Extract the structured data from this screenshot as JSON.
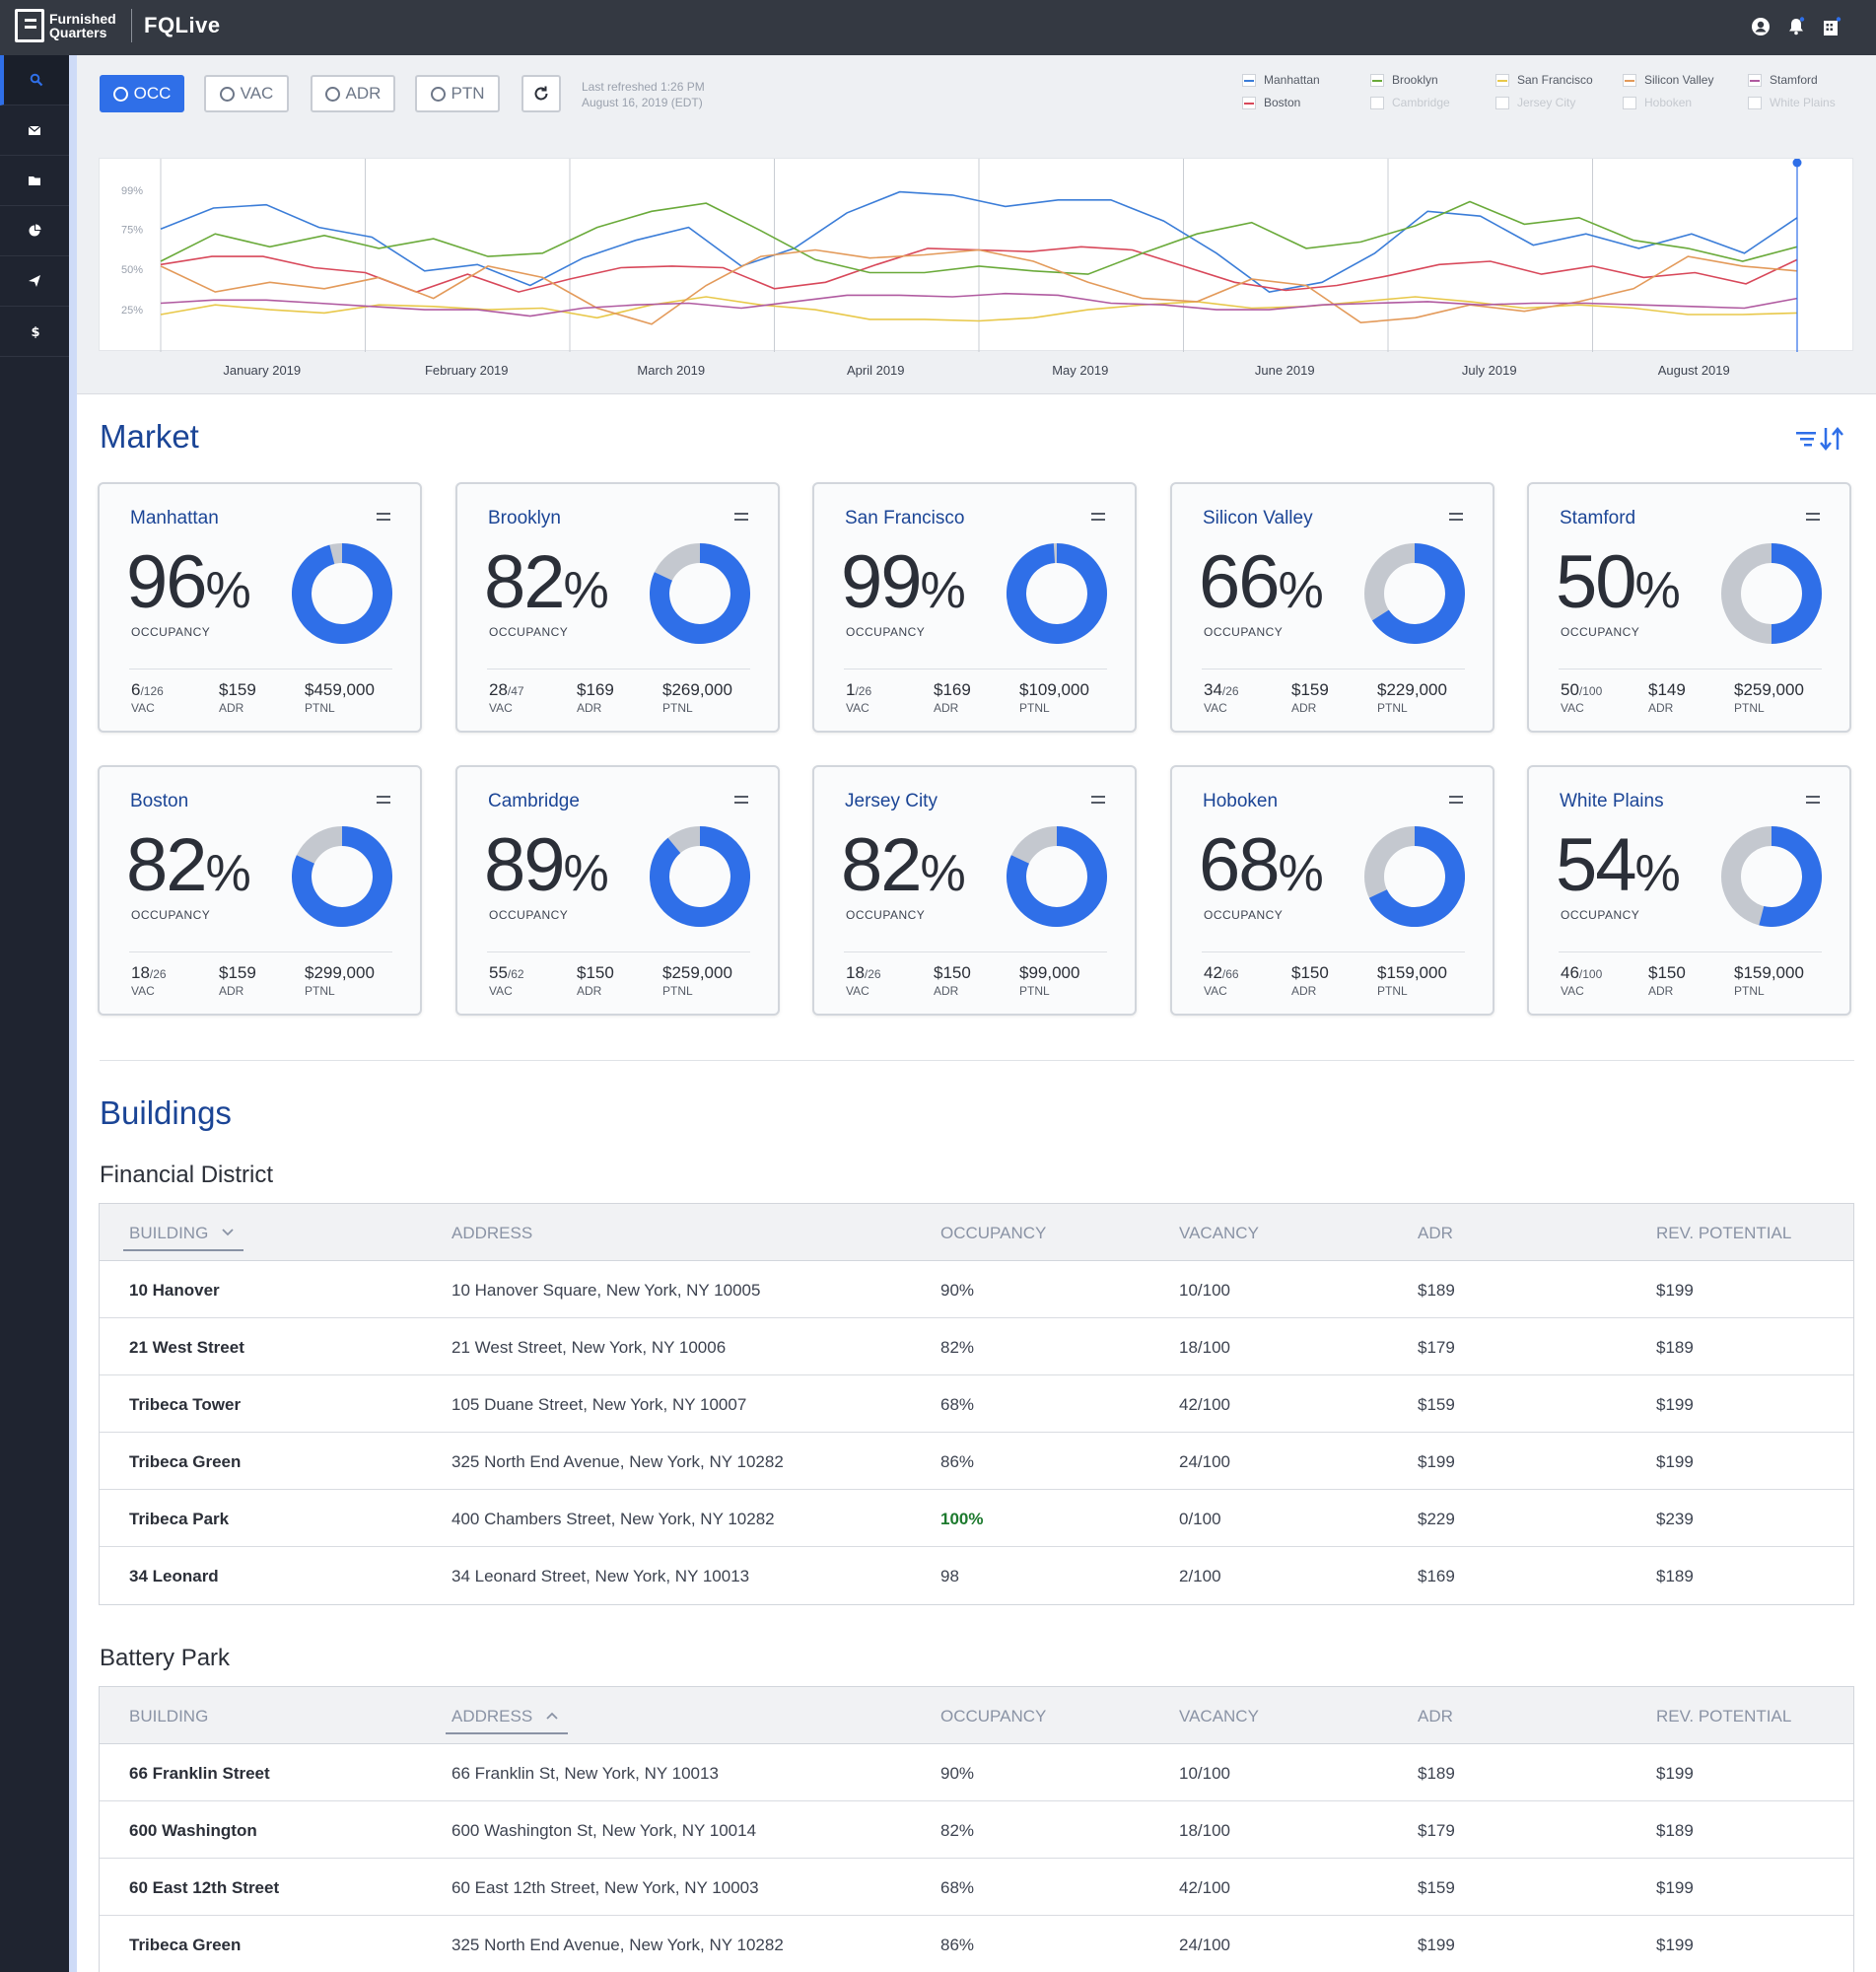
{
  "brand": {
    "logo_text": "Furnished Quarters",
    "app": "FQLive"
  },
  "toolbar": {
    "buttons": [
      {
        "label": "OCC",
        "active": true
      },
      {
        "label": "VAC",
        "active": false
      },
      {
        "label": "ADR",
        "active": false
      },
      {
        "label": "PTN",
        "active": false
      }
    ],
    "refresh_line1": "Last refreshed 1:26 PM",
    "refresh_line2": "August 16, 2019 (EDT)"
  },
  "legend": [
    {
      "label": "Manhattan",
      "color": "#3b7dd8",
      "enabled": true
    },
    {
      "label": "Boston",
      "color": "#d8485a",
      "enabled": true
    },
    {
      "label": "Brooklyn",
      "color": "#6aaa3a",
      "enabled": true
    },
    {
      "label": "Cambridge",
      "color": "#cccccc",
      "enabled": false
    },
    {
      "label": "San Francisco",
      "color": "#e8c84a",
      "enabled": true
    },
    {
      "label": "Jersey City",
      "color": "#cccccc",
      "enabled": false
    },
    {
      "label": "Silicon Valley",
      "color": "#e39a5a",
      "enabled": true
    },
    {
      "label": "Hoboken",
      "color": "#cccccc",
      "enabled": false
    },
    {
      "label": "Stamford",
      "color": "#b05aa0",
      "enabled": true
    },
    {
      "label": "White Plains",
      "color": "#cccccc",
      "enabled": false
    }
  ],
  "chart_data": {
    "type": "line",
    "yticks": [
      "99%",
      "75%",
      "50%",
      "25%"
    ],
    "ytick_values": [
      99,
      75,
      50,
      25
    ],
    "ylim": [
      0,
      110
    ],
    "x_labels": [
      "January 2019",
      "February 2019",
      "March 2019",
      "April 2019",
      "May 2019",
      "June 2019",
      "July 2019",
      "August 2019"
    ],
    "series": [
      {
        "name": "Manhattan",
        "color": "#3b7dd8",
        "values": [
          75,
          88,
          90,
          76,
          70,
          49,
          53,
          40,
          57,
          68,
          76,
          52,
          63,
          85,
          98,
          96,
          89,
          93,
          93,
          80,
          60,
          36,
          42,
          60,
          86,
          83,
          65,
          72,
          63,
          72,
          60,
          82
        ]
      },
      {
        "name": "Boston",
        "color": "#d8485a",
        "values": [
          53,
          58,
          58,
          51,
          48,
          36,
          47,
          36,
          44,
          51,
          52,
          51,
          38,
          42,
          53,
          63,
          62,
          61,
          64,
          62,
          52,
          42,
          37,
          40,
          46,
          53,
          55,
          47,
          52,
          45,
          48,
          41,
          56
        ]
      },
      {
        "name": "Brooklyn",
        "color": "#6aaa3a",
        "values": [
          55,
          72,
          64,
          71,
          63,
          69,
          58,
          60,
          76,
          86,
          91,
          74,
          56,
          48,
          48,
          52,
          49,
          47,
          60,
          72,
          79,
          63,
          67,
          77,
          92,
          78,
          82,
          68,
          63,
          55,
          64
        ]
      },
      {
        "name": "San Francisco",
        "color": "#e8c84a",
        "values": [
          22,
          28,
          25,
          23,
          28,
          27,
          25,
          26,
          20,
          28,
          33,
          28,
          25,
          19,
          19,
          18,
          20,
          25,
          28,
          30,
          26,
          27,
          30,
          33,
          30,
          26,
          28,
          26,
          22,
          22,
          23
        ]
      },
      {
        "name": "Silicon Valley",
        "color": "#e39a5a",
        "values": [
          52,
          36,
          42,
          38,
          45,
          32,
          52,
          45,
          26,
          16,
          40,
          58,
          62,
          57,
          59,
          62,
          55,
          42,
          32,
          30,
          44,
          40,
          17,
          20,
          28,
          24,
          30,
          38,
          58,
          52,
          49
        ]
      },
      {
        "name": "Stamford",
        "color": "#b05aa0",
        "values": [
          29,
          31,
          31,
          29,
          27,
          25,
          25,
          21,
          26,
          28,
          29,
          26,
          30,
          34,
          34,
          33,
          35,
          34,
          29,
          28,
          25,
          25,
          28,
          29,
          30,
          28,
          29,
          29,
          28,
          27,
          26,
          32
        ]
      }
    ]
  },
  "market": {
    "title": "Market",
    "cards": [
      {
        "name": "Manhattan",
        "pct": "96",
        "occ_label": "OCCUPANCY",
        "vac": "6",
        "vac_total": "/126",
        "vac_label": "VAC",
        "adr": "$159",
        "adr_label": "ADR",
        "ptnl": "$459,000",
        "ptnl_label": "PTNL",
        "occupancy": 96
      },
      {
        "name": "Brooklyn",
        "pct": "82",
        "occ_label": "OCCUPANCY",
        "vac": "28",
        "vac_total": "/47",
        "vac_label": "VAC",
        "adr": "$169",
        "adr_label": "ADR",
        "ptnl": "$269,000",
        "ptnl_label": "PTNL",
        "occupancy": 82
      },
      {
        "name": "San Francisco",
        "pct": "99",
        "occ_label": "OCCUPANCY",
        "vac": "1",
        "vac_total": "/26",
        "vac_label": "VAC",
        "adr": "$169",
        "adr_label": "ADR",
        "ptnl": "$109,000",
        "ptnl_label": "PTNL",
        "occupancy": 99
      },
      {
        "name": "Silicon Valley",
        "pct": "66",
        "occ_label": "OCCUPANCY",
        "vac": "34",
        "vac_total": "/26",
        "vac_label": "VAC",
        "adr": "$159",
        "adr_label": "ADR",
        "ptnl": "$229,000",
        "ptnl_label": "PTNL",
        "occupancy": 66
      },
      {
        "name": "Stamford",
        "pct": "50",
        "occ_label": "OCCUPANCY",
        "vac": "50",
        "vac_total": "/100",
        "vac_label": "VAC",
        "adr": "$149",
        "adr_label": "ADR",
        "ptnl": "$259,000",
        "ptnl_label": "PTNL",
        "occupancy": 50
      },
      {
        "name": "Boston",
        "pct": "82",
        "occ_label": "OCCUPANCY",
        "vac": "18",
        "vac_total": "/26",
        "vac_label": "VAC",
        "adr": "$159",
        "adr_label": "ADR",
        "ptnl": "$299,000",
        "ptnl_label": "PTNL",
        "occupancy": 82
      },
      {
        "name": "Cambridge",
        "pct": "89",
        "occ_label": "OCCUPANCY",
        "vac": "55",
        "vac_total": "/62",
        "vac_label": "VAC",
        "adr": "$150",
        "adr_label": "ADR",
        "ptnl": "$259,000",
        "ptnl_label": "PTNL",
        "occupancy": 89
      },
      {
        "name": "Jersey City",
        "pct": "82",
        "occ_label": "OCCUPANCY",
        "vac": "18",
        "vac_total": "/26",
        "vac_label": "VAC",
        "adr": "$150",
        "adr_label": "ADR",
        "ptnl": "$99,000",
        "ptnl_label": "PTNL",
        "occupancy": 82
      },
      {
        "name": "Hoboken",
        "pct": "68",
        "occ_label": "OCCUPANCY",
        "vac": "42",
        "vac_total": "/66",
        "vac_label": "VAC",
        "adr": "$150",
        "adr_label": "ADR",
        "ptnl": "$159,000",
        "ptnl_label": "PTNL",
        "occupancy": 68
      },
      {
        "name": "White Plains",
        "pct": "54",
        "occ_label": "OCCUPANCY",
        "vac": "46",
        "vac_total": "/100",
        "vac_label": "VAC",
        "adr": "$150",
        "adr_label": "ADR",
        "ptnl": "$159,000",
        "ptnl_label": "PTNL",
        "occupancy": 54
      }
    ]
  },
  "buildings": {
    "title": "Buildings",
    "headers": [
      "BUILDING",
      "ADDRESS",
      "OCCUPANCY",
      "VACANCY",
      "ADR",
      "REV. POTENTIAL"
    ],
    "groups": [
      {
        "name": "Financial District",
        "rows": [
          [
            "10 Hanover",
            "10 Hanover Square, New York, NY 10005",
            "90%",
            "10/100",
            "$189",
            "$199"
          ],
          [
            "21 West Street",
            "21 West Street, New York, NY 10006",
            "82%",
            "18/100",
            "$179",
            "$189"
          ],
          [
            "Tribeca Tower",
            "105 Duane Street, New York, NY 10007",
            "68%",
            "42/100",
            "$159",
            "$199"
          ],
          [
            "Tribeca Green",
            "325 North End Avenue, New York, NY 10282",
            "86%",
            "24/100",
            "$199",
            "$199"
          ],
          [
            "Tribeca Park",
            "400 Chambers Street, New York, NY 10282",
            "100%",
            "0/100",
            "$229",
            "$239"
          ],
          [
            "34 Leonard",
            "34 Leonard Street, New York, NY 10013",
            "98",
            "2/100",
            "$169",
            "$189"
          ]
        ]
      },
      {
        "name": "Battery Park",
        "rows": [
          [
            "66 Franklin Street",
            "66 Franklin St, New York, NY 10013",
            "90%",
            "10/100",
            "$189",
            "$199"
          ],
          [
            "600 Washington",
            "600 Washington St, New York, NY 10014",
            "82%",
            "18/100",
            "$179",
            "$189"
          ],
          [
            "60 East 12th Street",
            "60 East 12th Street, New York, NY 10003",
            "68%",
            "42/100",
            "$159",
            "$199"
          ],
          [
            "Tribeca Green",
            "325 North End Avenue, New York, NY 10282",
            "86%",
            "24/100",
            "$199",
            "$199"
          ]
        ]
      }
    ]
  }
}
